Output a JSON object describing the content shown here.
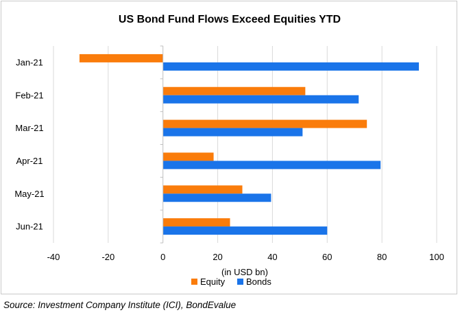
{
  "chart_data": {
    "type": "bar",
    "orientation": "horizontal",
    "title": "US Bond Fund Flows Exceed Equities YTD",
    "categories": [
      "Jan-21",
      "Feb-21",
      "Mar-21",
      "Apr-21",
      "May-21",
      "Jun-21"
    ],
    "series": [
      {
        "name": "Equity",
        "color": "#fa7c0b",
        "values": [
          -30.5,
          52,
          74.5,
          18.5,
          29,
          24.5
        ]
      },
      {
        "name": "Bonds",
        "color": "#1a74e9",
        "values": [
          93.5,
          71.5,
          51,
          79.5,
          39.5,
          60
        ]
      }
    ],
    "xlabel": "(in USD bn)",
    "xlim": [
      -40,
      100
    ],
    "xticks": [
      -40,
      -20,
      0,
      20,
      40,
      60,
      80,
      100
    ],
    "grid": true,
    "legend_position": "bottom"
  },
  "source": "Source: Investment Company Institute (ICI), BondEvalue"
}
